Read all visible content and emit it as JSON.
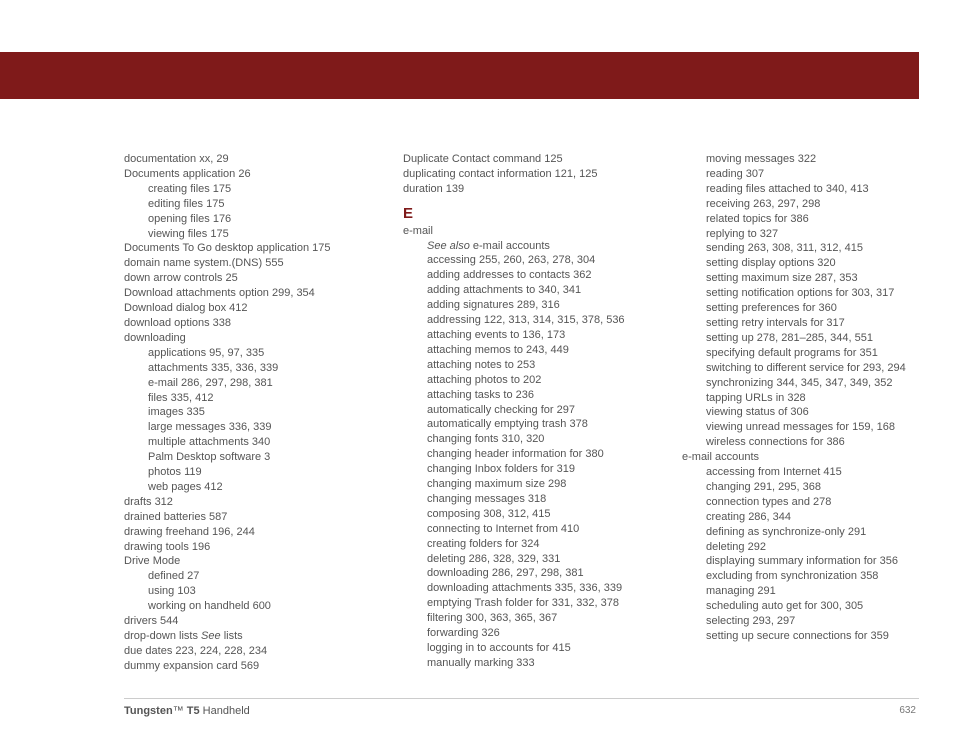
{
  "colors": {
    "brand": "#7f1a1a",
    "text": "#555555",
    "rule": "#cccccc"
  },
  "footer": {
    "brand": "Tungsten",
    "tm": "™",
    "model": "T5",
    "suffix": "Handheld",
    "page": "632"
  },
  "col1": [
    {
      "t": "documentation xx, 29",
      "i": 0
    },
    {
      "t": "Documents application 26",
      "i": 0
    },
    {
      "t": "creating files 175",
      "i": 1
    },
    {
      "t": "editing files 175",
      "i": 1
    },
    {
      "t": "opening files 176",
      "i": 1
    },
    {
      "t": "viewing files 175",
      "i": 1
    },
    {
      "t": "Documents To Go desktop application 175",
      "i": 0
    },
    {
      "t": "domain name system.(DNS) 555",
      "i": 0
    },
    {
      "t": "down arrow controls 25",
      "i": 0
    },
    {
      "t": "Download attachments option 299, 354",
      "i": 0
    },
    {
      "t": "Download dialog box 412",
      "i": 0
    },
    {
      "t": "download options 338",
      "i": 0
    },
    {
      "t": "downloading",
      "i": 0
    },
    {
      "t": "applications 95, 97, 335",
      "i": 1
    },
    {
      "t": "attachments 335, 336, 339",
      "i": 1
    },
    {
      "t": "e-mail 286, 297, 298, 381",
      "i": 1
    },
    {
      "t": "files 335, 412",
      "i": 1
    },
    {
      "t": "images 335",
      "i": 1
    },
    {
      "t": "large messages 336, 339",
      "i": 1
    },
    {
      "t": "multiple attachments 340",
      "i": 1
    },
    {
      "t": "Palm Desktop software 3",
      "i": 1
    },
    {
      "t": "photos 119",
      "i": 1
    },
    {
      "t": "web pages 412",
      "i": 1
    },
    {
      "t": "drafts 312",
      "i": 0
    },
    {
      "t": "drained batteries 587",
      "i": 0
    },
    {
      "t": "drawing freehand 196, 244",
      "i": 0
    },
    {
      "t": "drawing tools 196",
      "i": 0
    },
    {
      "t": "Drive Mode",
      "i": 0
    },
    {
      "t": "defined 27",
      "i": 1
    },
    {
      "t": "using 103",
      "i": 1
    },
    {
      "t": "working on handheld 600",
      "i": 1
    },
    {
      "t": "drivers 544",
      "i": 0
    },
    {
      "pre": "drop-down lists ",
      "it": "See ",
      "post": "lists",
      "i": 0
    },
    {
      "t": "due dates 223, 224, 228, 234",
      "i": 0
    },
    {
      "t": "dummy expansion card 569",
      "i": 0
    }
  ],
  "col2": [
    {
      "t": "Duplicate Contact command 125",
      "i": 0
    },
    {
      "t": "duplicating contact information 121, 125",
      "i": 0
    },
    {
      "t": "duration 139",
      "i": 0
    },
    {
      "section": "E"
    },
    {
      "t": "e-mail",
      "i": 0
    },
    {
      "pre": "",
      "it": "See also ",
      "post": "e-mail accounts",
      "i": 1
    },
    {
      "t": "accessing 255, 260, 263, 278, 304",
      "i": 1
    },
    {
      "t": "adding addresses to contacts 362",
      "i": 1
    },
    {
      "t": "adding attachments to 340, 341",
      "i": 1
    },
    {
      "t": "adding signatures 289, 316",
      "i": 1
    },
    {
      "t": "addressing 122, 313, 314, 315, 378, 536",
      "i": 1
    },
    {
      "t": "attaching events to 136, 173",
      "i": 1
    },
    {
      "t": "attaching memos to 243, 449",
      "i": 1
    },
    {
      "t": "attaching notes to 253",
      "i": 1
    },
    {
      "t": "attaching photos to 202",
      "i": 1
    },
    {
      "t": "attaching tasks to 236",
      "i": 1
    },
    {
      "t": "automatically checking for 297",
      "i": 1
    },
    {
      "t": "automatically emptying trash 378",
      "i": 1
    },
    {
      "t": "changing fonts 310, 320",
      "i": 1
    },
    {
      "t": "changing header information for 380",
      "i": 1
    },
    {
      "t": "changing Inbox folders for 319",
      "i": 1
    },
    {
      "t": "changing maximum size 298",
      "i": 1
    },
    {
      "t": "changing messages 318",
      "i": 1
    },
    {
      "t": "composing 308, 312, 415",
      "i": 1
    },
    {
      "t": "connecting to Internet from 410",
      "i": 1
    },
    {
      "t": "creating folders for 324",
      "i": 1
    },
    {
      "t": "deleting 286, 328, 329, 331",
      "i": 1
    },
    {
      "t": "downloading 286, 297, 298, 381",
      "i": 1
    },
    {
      "t": "downloading attachments 335, 336, 339",
      "i": 1
    },
    {
      "t": "emptying Trash folder for 331, 332, 378",
      "i": 1
    },
    {
      "t": "filtering 300, 363, 365, 367",
      "i": 1
    },
    {
      "t": "forwarding 326",
      "i": 1
    },
    {
      "t": "logging in to accounts for 415",
      "i": 1
    },
    {
      "t": "manually marking 333",
      "i": 1
    }
  ],
  "col3": [
    {
      "t": "moving messages 322",
      "i": 1
    },
    {
      "t": "reading 307",
      "i": 1
    },
    {
      "t": "reading files attached to 340, 413",
      "i": 1
    },
    {
      "t": "receiving 263, 297, 298",
      "i": 1
    },
    {
      "t": "related topics for 386",
      "i": 1
    },
    {
      "t": "replying to 327",
      "i": 1
    },
    {
      "t": "sending 263, 308, 311, 312, 415",
      "i": 1
    },
    {
      "t": "setting display options 320",
      "i": 1
    },
    {
      "t": "setting maximum size 287, 353",
      "i": 1
    },
    {
      "t": "setting notification options for 303, 317",
      "i": 1
    },
    {
      "t": "setting preferences for 360",
      "i": 1
    },
    {
      "t": "setting retry intervals for 317",
      "i": 1
    },
    {
      "t": "setting up 278, 281–285, 344, 551",
      "i": 1
    },
    {
      "t": "specifying default programs for 351",
      "i": 1
    },
    {
      "t": "switching to different service for 293, 294",
      "i": 1,
      "wrap": true
    },
    {
      "t": "synchronizing 344, 345, 347, 349, 352",
      "i": 1
    },
    {
      "t": "tapping URLs in 328",
      "i": 1
    },
    {
      "t": "viewing status of 306",
      "i": 1
    },
    {
      "t": "viewing unread messages for 159, 168",
      "i": 1
    },
    {
      "t": "wireless connections for 386",
      "i": 1
    },
    {
      "t": "e-mail accounts",
      "i": 0
    },
    {
      "t": "accessing from Internet 415",
      "i": 1
    },
    {
      "t": "changing 291, 295, 368",
      "i": 1
    },
    {
      "t": "connection types and 278",
      "i": 1
    },
    {
      "t": "creating 286, 344",
      "i": 1
    },
    {
      "t": "defining as synchronize-only 291",
      "i": 1
    },
    {
      "t": "deleting 292",
      "i": 1
    },
    {
      "t": "displaying summary information for 356",
      "i": 1,
      "wrap": true
    },
    {
      "t": "excluding from synchronization 358",
      "i": 1
    },
    {
      "t": "managing 291",
      "i": 1
    },
    {
      "t": "scheduling auto get for 300, 305",
      "i": 1
    },
    {
      "t": "selecting 293, 297",
      "i": 1
    },
    {
      "t": "setting up secure connections for 359",
      "i": 1
    }
  ]
}
